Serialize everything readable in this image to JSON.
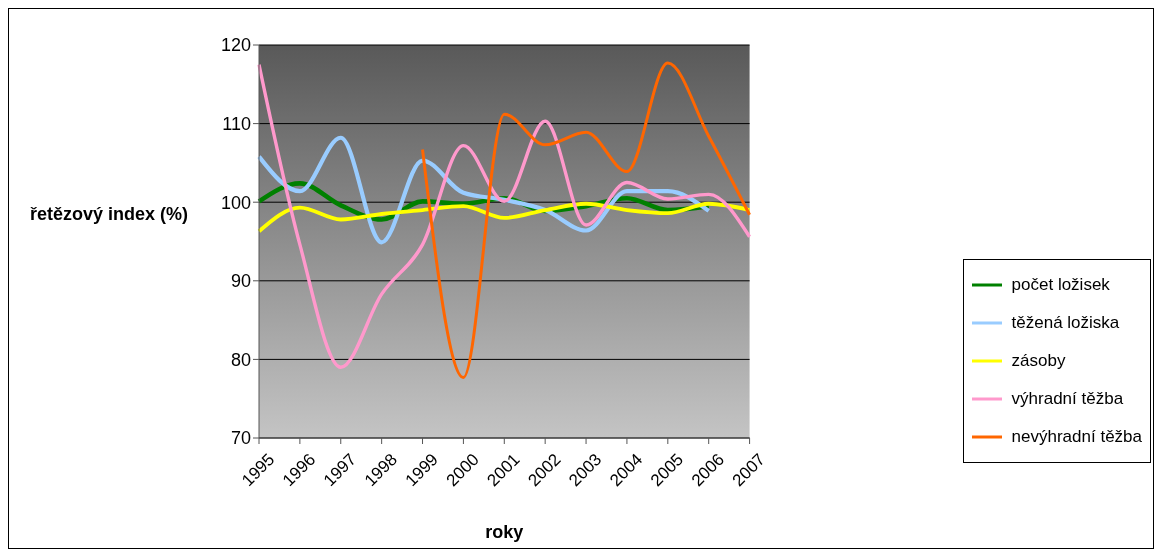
{
  "chart_data": {
    "type": "line",
    "xlabel": "roky",
    "ylabel": "řetězový index (%)",
    "categories": [
      "1995",
      "1996",
      "1997",
      "1998",
      "1999",
      "2000",
      "2001",
      "2002",
      "2003",
      "2004",
      "2005",
      "2006",
      "2007"
    ],
    "series": [
      {
        "name": "počet ložisek",
        "color": "#008000",
        "values": [
          100.1,
          102.4,
          99.6,
          97.8,
          100.1,
          99.8,
          100.5,
          98.9,
          99.5,
          100.5,
          99.0,
          99.5,
          null
        ]
      },
      {
        "name": "těžená ložiska",
        "color": "#99ccff",
        "values": [
          105.8,
          101.4,
          108.2,
          94.9,
          105.3,
          101.2,
          100.3,
          99.0,
          96.4,
          101.4,
          101.4,
          98.9,
          null
        ]
      },
      {
        "name": "zásoby",
        "color": "#ffff00",
        "values": [
          96.3,
          99.3,
          97.8,
          98.5,
          99.0,
          99.5,
          98.0,
          99.0,
          99.8,
          99.0,
          98.6,
          99.8,
          99.0
        ]
      },
      {
        "name": "výhradní těžba",
        "color": "#ff99cc",
        "values": [
          117.5,
          94.6,
          79.0,
          88.3,
          94.6,
          107.2,
          100.1,
          110.3,
          97.1,
          102.5,
          100.4,
          101.0,
          95.6
        ]
      },
      {
        "name": "nevýhradní těžba",
        "color": "#ff6600",
        "values": [
          null,
          null,
          null,
          null,
          106.7,
          77.7,
          111.2,
          107.3,
          108.9,
          103.9,
          117.7,
          108.4,
          98.4
        ]
      }
    ],
    "ylim": [
      70,
      120
    ],
    "yticks": [
      70,
      80,
      90,
      100,
      110,
      120
    ],
    "grid": "y",
    "legend": "right",
    "marker": "none",
    "line_style": "solid"
  }
}
